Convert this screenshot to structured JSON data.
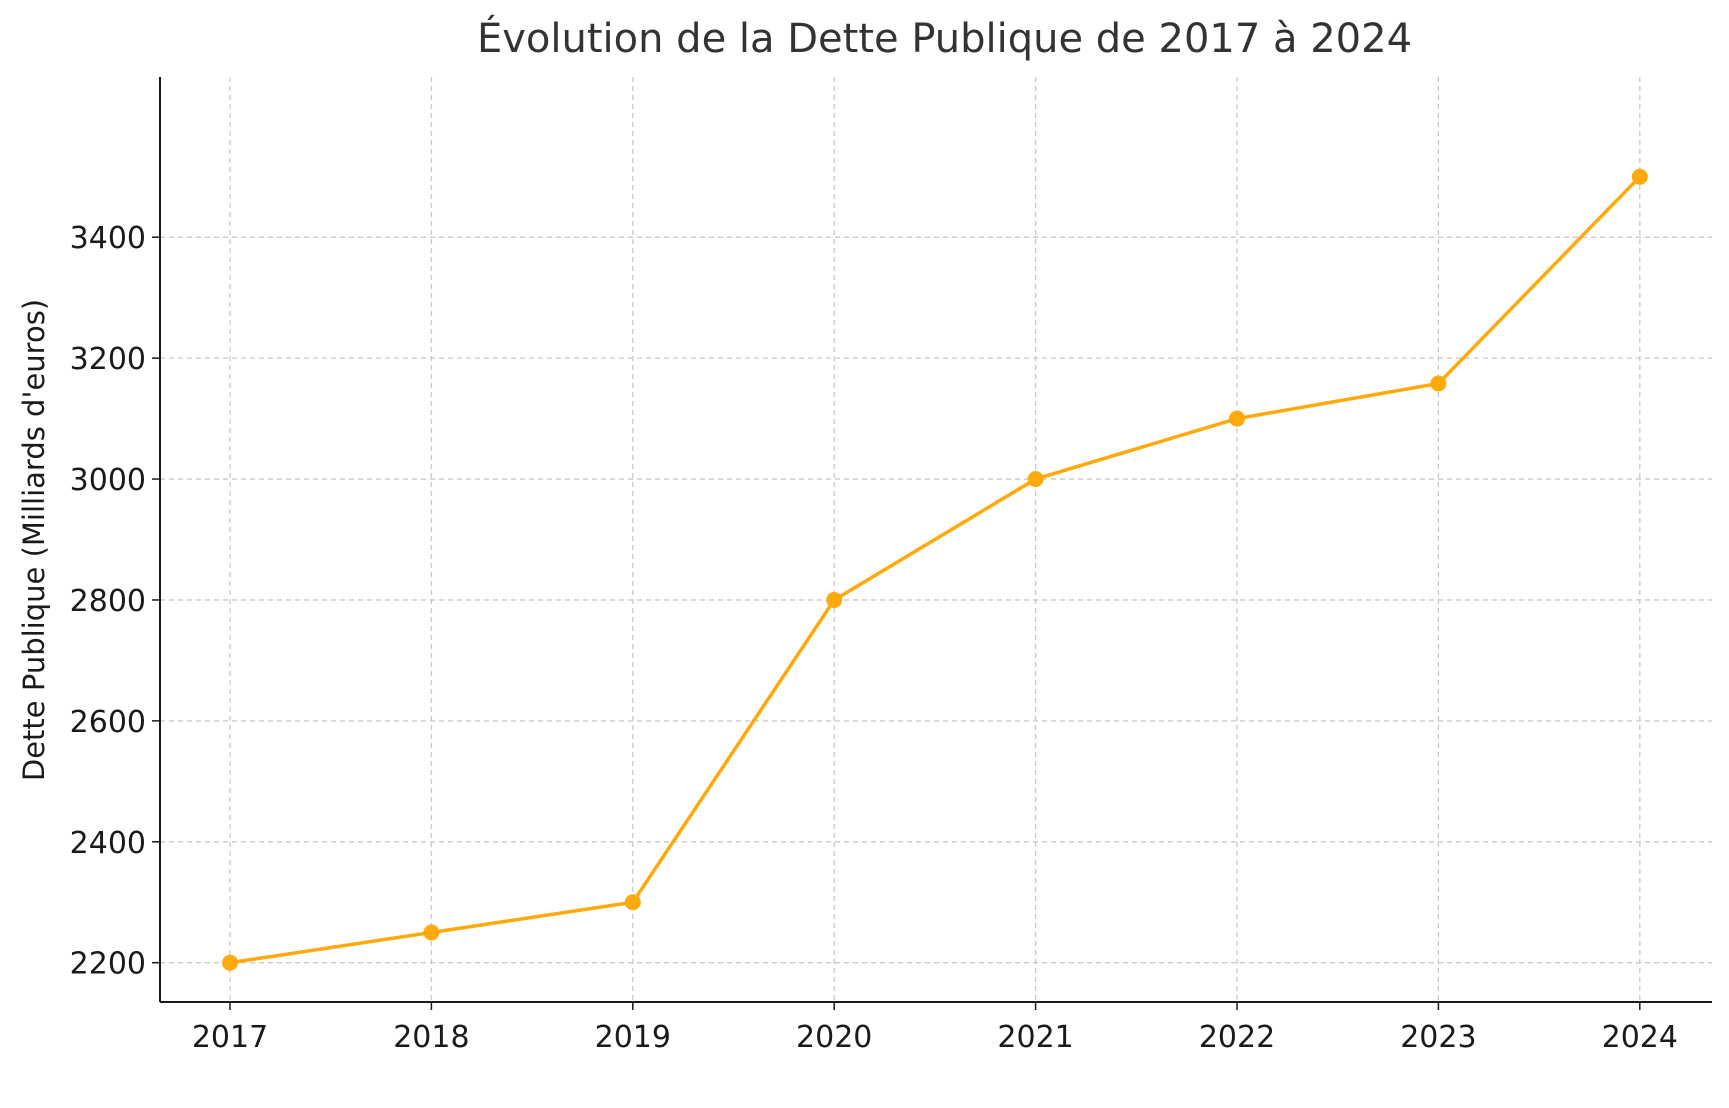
{
  "chart_data": {
    "type": "line",
    "title": "Évolution de la Dette Publique de 2017 à 2024",
    "xlabel": "",
    "ylabel": "Dette Publique (Milliards d'euros)",
    "categories": [
      "2017",
      "2018",
      "2019",
      "2020",
      "2021",
      "2022",
      "2023",
      "2024"
    ],
    "series": [
      {
        "values": [
          2200,
          2250,
          2300,
          2800,
          3000,
          3100,
          3158,
          3500
        ],
        "color": "#FFA90A",
        "marker": "circle"
      }
    ],
    "ylim": [
      2135,
      3665
    ],
    "yticks": [
      2200,
      2400,
      2600,
      2800,
      3000,
      3200,
      3400
    ],
    "grid": true,
    "grid_style": "dashed",
    "legend": "none"
  }
}
